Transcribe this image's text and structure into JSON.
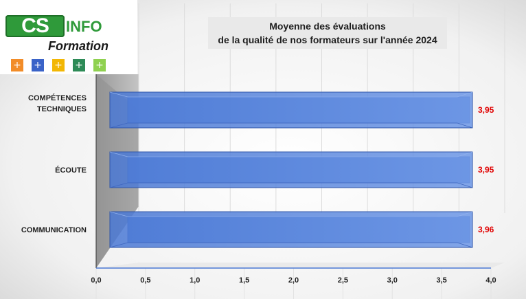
{
  "logo": {
    "cs": "CS",
    "info": "INFO",
    "formation": "Formation",
    "plus_buttons": [
      {
        "label": "+",
        "color": "#f28c28"
      },
      {
        "label": "+",
        "color": "#3a63c8"
      },
      {
        "label": "+",
        "color": "#f2b705"
      },
      {
        "label": "+",
        "color": "#2e8b57"
      },
      {
        "label": "+",
        "color": "#8fd14f"
      }
    ]
  },
  "chart_data": {
    "type": "bar",
    "orientation": "horizontal",
    "title": "Moyenne des évaluations\nde la qualité de nos formateurs sur l'année 2024",
    "title_lines": [
      "Moyenne des évaluations",
      "de la qualité de nos formateurs sur l'année 2024"
    ],
    "categories": [
      "COMPÉTENCES\nTECHNIQUES",
      "ÉCOUTE",
      "COMMUNICATION"
    ],
    "category_lines": [
      [
        "COMPÉTENCES",
        "TECHNIQUES"
      ],
      [
        "ÉCOUTE"
      ],
      [
        "COMMUNICATION"
      ]
    ],
    "values": [
      3.95,
      3.95,
      3.96
    ],
    "value_labels": [
      "3,95",
      "3,95",
      "3,96"
    ],
    "xlim": [
      0,
      4.0
    ],
    "xticks": [
      0,
      0.5,
      1.0,
      1.5,
      2.0,
      2.5,
      3.0,
      3.5,
      4.0
    ],
    "xtick_labels": [
      "0,0",
      "0,5",
      "1,0",
      "1,5",
      "2,0",
      "2,5",
      "3,0",
      "3,5",
      "4,0"
    ],
    "grid": true,
    "legend": "none",
    "colors": {
      "bar": "#4f7fd9",
      "bar_edge": "#2f55a8",
      "value_label": "#e00000",
      "wall": "#a9a9a9"
    }
  }
}
